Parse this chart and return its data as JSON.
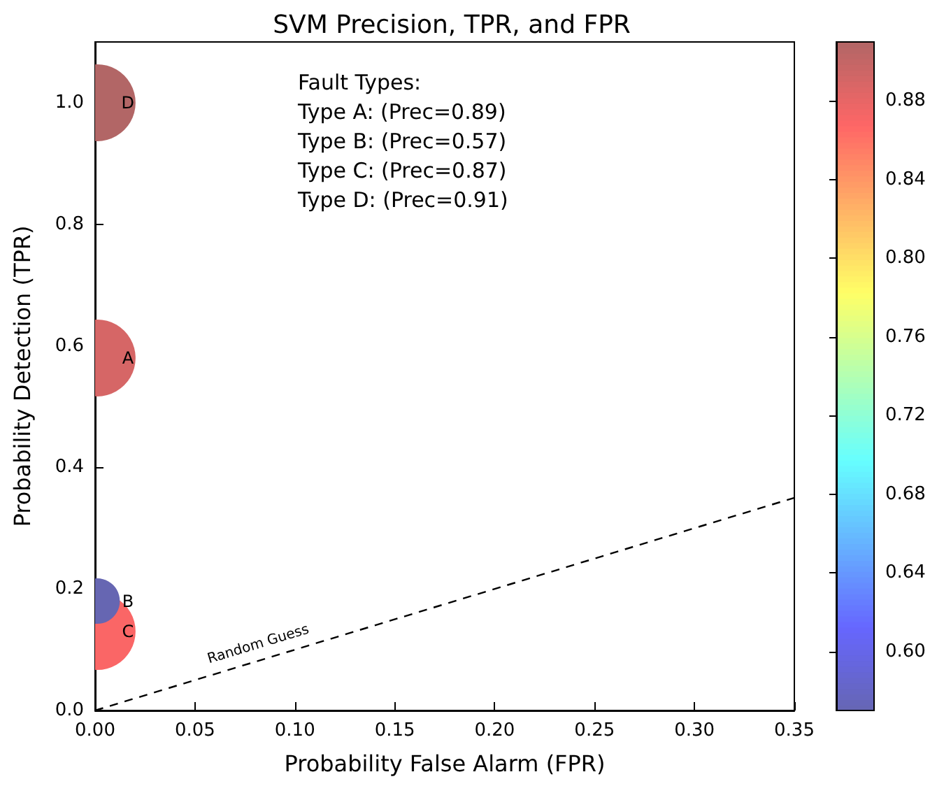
{
  "chart_data": {
    "type": "bubble",
    "title": "SVM Precision, TPR, and FPR",
    "xlabel": "Probability False Alarm (FPR)",
    "ylabel": "Probability Detection (TPR)",
    "xlim": [
      0,
      0.35
    ],
    "xticks": [
      {
        "value": 0,
        "label": "0.00"
      },
      {
        "value": 0.05,
        "label": "0.05"
      },
      {
        "value": 0.1,
        "label": "0.10"
      },
      {
        "value": 0.15,
        "label": "0.15"
      },
      {
        "value": 0.2,
        "label": "0.20"
      },
      {
        "value": 0.25,
        "label": "0.25"
      },
      {
        "value": 0.3,
        "label": "0.30"
      },
      {
        "value": 0.35,
        "label": "0.35"
      }
    ],
    "ylim": [
      0,
      1.1
    ],
    "yticks": [
      {
        "value": 0,
        "label": "0.0"
      },
      {
        "value": 0.2,
        "label": "0.2"
      },
      {
        "value": 0.4,
        "label": "0.4"
      },
      {
        "value": 0.6,
        "label": "0.6"
      },
      {
        "value": 0.8,
        "label": "0.8"
      },
      {
        "value": 1,
        "label": "1.0"
      }
    ],
    "clim": [
      0.57,
      0.91
    ],
    "cticks": [
      {
        "value": 0.6,
        "label": "0.60"
      },
      {
        "value": 0.64,
        "label": "0.64"
      },
      {
        "value": 0.68,
        "label": "0.68"
      },
      {
        "value": 0.72,
        "label": "0.72"
      },
      {
        "value": 0.76,
        "label": "0.76"
      },
      {
        "value": 0.8,
        "label": "0.80"
      },
      {
        "value": 0.84,
        "label": "0.84"
      },
      {
        "value": 0.88,
        "label": "0.88"
      }
    ],
    "series": [
      {
        "name": "D",
        "x": [
          0.001
        ],
        "values": [
          1.0
        ],
        "sizes": [
          1
        ],
        "cvalues": [
          0.91
        ]
      },
      {
        "name": "A",
        "x": [
          0.001
        ],
        "values": [
          0.58
        ],
        "sizes": [
          1
        ],
        "cvalues": [
          0.89
        ]
      },
      {
        "name": "C",
        "x": [
          0.001
        ],
        "values": [
          0.13
        ],
        "sizes": [
          1
        ],
        "cvalues": [
          0.87
        ]
      },
      {
        "name": "B",
        "x": [
          0.001
        ],
        "values": [
          0.18
        ],
        "sizes": [
          0.35
        ],
        "cvalues": [
          0.57
        ]
      },
      {
        "name": "Random Guess",
        "type": "line",
        "x": [
          0,
          0.35
        ],
        "values": [
          0,
          0.35
        ],
        "color": "#000000",
        "line_style": "dashed",
        "marker": "none"
      }
    ],
    "annotations": [
      "Fault Types:",
      "Type A: (Prec=0.89)",
      "Type B: (Prec=0.57)",
      "Type C: (Prec=0.87)",
      "Type D: (Prec=0.91)"
    ]
  }
}
